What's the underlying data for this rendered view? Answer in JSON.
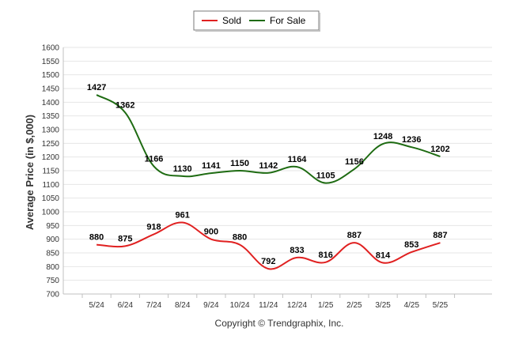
{
  "chart_data": {
    "type": "line",
    "title": "",
    "xlabel": "",
    "ylabel": "Average Price (in $,000)",
    "categories": [
      "5/24",
      "6/24",
      "7/24",
      "8/24",
      "9/24",
      "10/24",
      "11/24",
      "12/24",
      "1/25",
      "2/25",
      "3/25",
      "4/25",
      "5/25"
    ],
    "ylim": [
      700,
      1600
    ],
    "yticks": [
      700,
      750,
      800,
      850,
      900,
      950,
      1000,
      1050,
      1100,
      1150,
      1200,
      1250,
      1300,
      1350,
      1400,
      1450,
      1500,
      1550,
      1600
    ],
    "grid": true,
    "legend_position": "top-center",
    "series": [
      {
        "name": "Sold",
        "color": "#e02020",
        "values": [
          880,
          875,
          918,
          961,
          900,
          880,
          792,
          833,
          816,
          887,
          814,
          853,
          887
        ]
      },
      {
        "name": "For Sale",
        "color": "#1e6b12",
        "values": [
          1427,
          1362,
          1166,
          1130,
          1141,
          1150,
          1142,
          1164,
          1105,
          1156,
          1248,
          1236,
          1202
        ]
      }
    ]
  },
  "credit": "Copyright © Trendgraphix, Inc."
}
